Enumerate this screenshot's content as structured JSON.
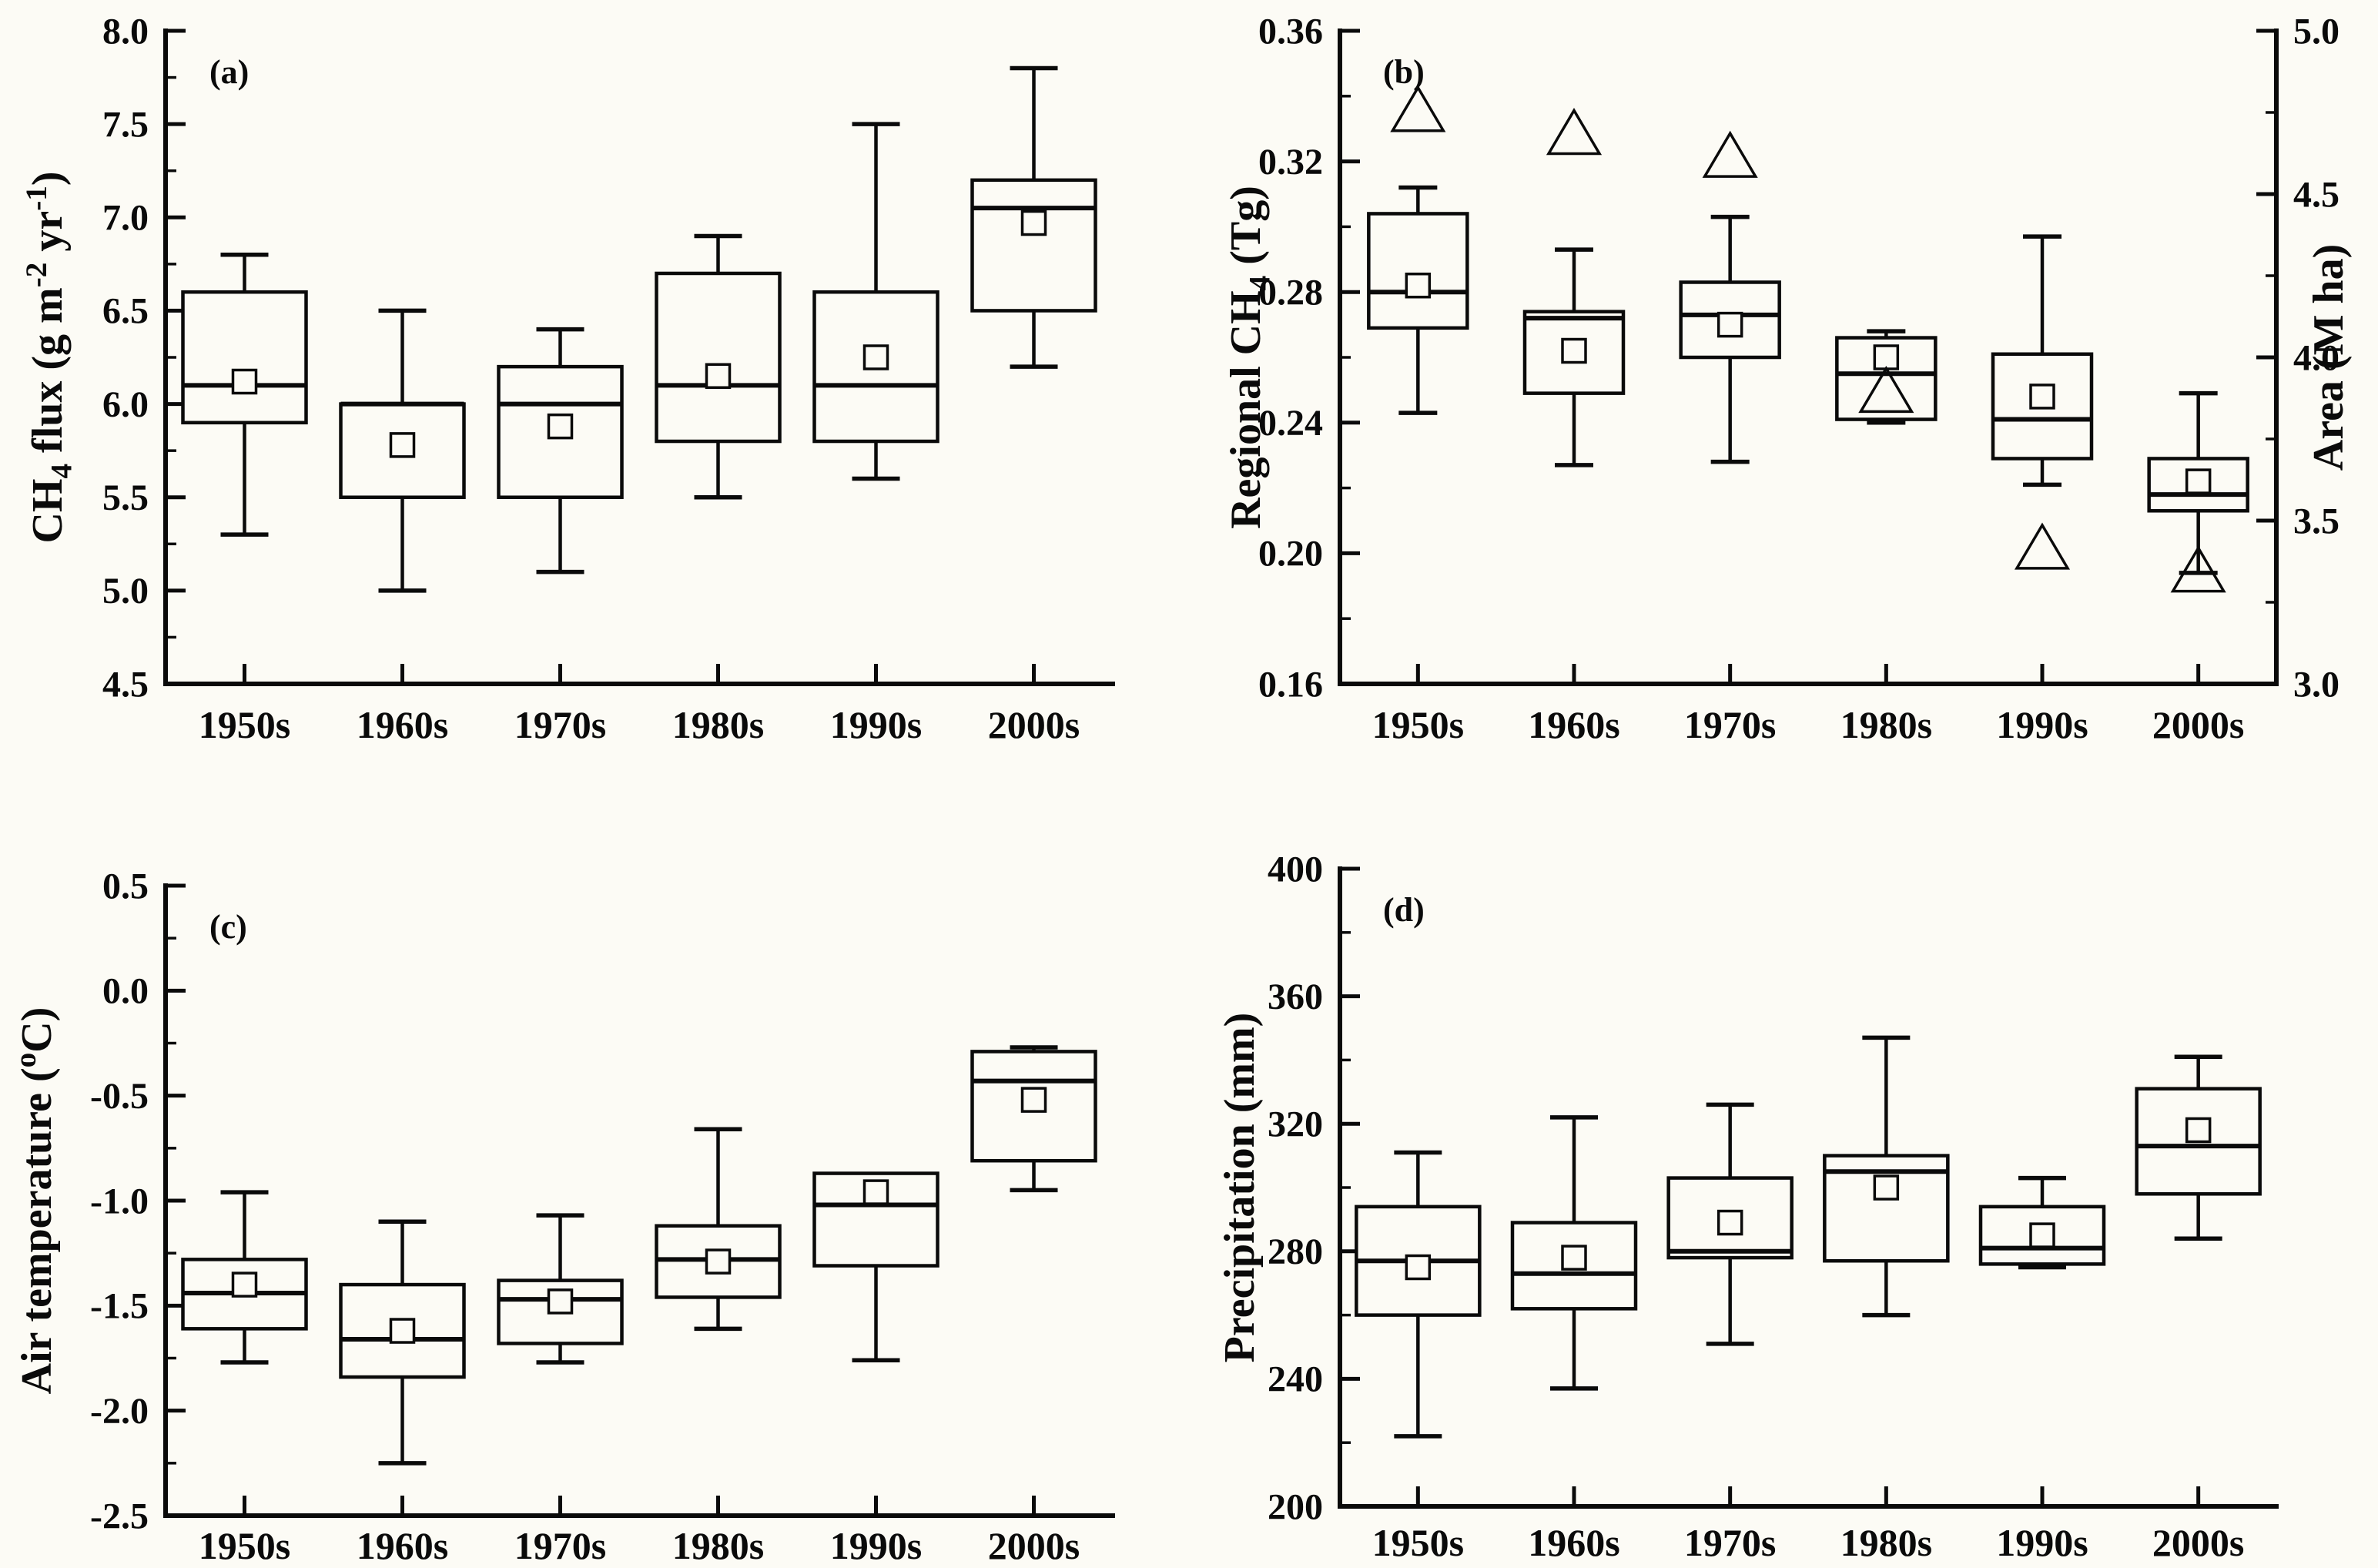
{
  "figure": {
    "background_color": "#fcfbf5",
    "ink_color": "#0a0a0a",
    "mean_marker": "open-square",
    "area_marker": "open-triangle"
  },
  "chart_data": [
    {
      "id": "a",
      "type": "box",
      "panel_label": "(a)",
      "y_axis": {
        "title_segments": [
          {
            "t": "CH"
          },
          {
            "t": "4",
            "pos": "sub"
          },
          {
            "t": " flux (g m"
          },
          {
            "t": "-2",
            "pos": "sup"
          },
          {
            "t": " yr"
          },
          {
            "t": "-1",
            "pos": "sup"
          },
          {
            "t": ")"
          }
        ],
        "lim": [
          4.5,
          8.0
        ],
        "major_ticks": [
          4.5,
          5.0,
          5.5,
          6.0,
          6.5,
          7.0,
          7.5,
          8.0
        ],
        "major_labels": [
          "4.5",
          "5.0",
          "5.5",
          "6.0",
          "6.5",
          "7.0",
          "7.5",
          "8.0"
        ],
        "minor_ticks": [
          4.75,
          5.25,
          5.75,
          6.25,
          6.75,
          7.25,
          7.75
        ]
      },
      "x_axis": {
        "categories": [
          "1950s",
          "1960s",
          "1970s",
          "1980s",
          "1990s",
          "2000s"
        ]
      },
      "boxes": [
        {
          "category": "1950s",
          "lower_whisker": 5.3,
          "q1": 5.9,
          "median": 6.1,
          "q3": 6.6,
          "upper_whisker": 6.8,
          "mean": 6.12
        },
        {
          "category": "1960s",
          "lower_whisker": 5.0,
          "q1": 5.5,
          "median": 6.0,
          "q3": 6.0,
          "upper_whisker": 6.5,
          "mean": 5.78
        },
        {
          "category": "1970s",
          "lower_whisker": 5.1,
          "q1": 5.5,
          "median": 6.0,
          "q3": 6.2,
          "upper_whisker": 6.4,
          "mean": 5.88
        },
        {
          "category": "1980s",
          "lower_whisker": 5.5,
          "q1": 5.8,
          "median": 6.1,
          "q3": 6.7,
          "upper_whisker": 6.9,
          "mean": 6.15
        },
        {
          "category": "1990s",
          "lower_whisker": 5.6,
          "q1": 5.8,
          "median": 6.1,
          "q3": 6.6,
          "upper_whisker": 7.5,
          "mean": 6.25
        },
        {
          "category": "2000s",
          "lower_whisker": 6.2,
          "q1": 6.5,
          "median": 7.05,
          "q3": 7.2,
          "upper_whisker": 7.8,
          "mean": 6.97
        }
      ]
    },
    {
      "id": "b",
      "type": "box",
      "panel_label": "(b)",
      "y_axis": {
        "title_segments": [
          {
            "t": "Regional CH"
          },
          {
            "t": "4",
            "pos": "sub"
          },
          {
            "t": " (Tg)"
          }
        ],
        "lim": [
          0.16,
          0.36
        ],
        "major_ticks": [
          0.16,
          0.2,
          0.24,
          0.28,
          0.32,
          0.36
        ],
        "major_labels": [
          "0.16",
          "0.20",
          "0.24",
          "0.28",
          "0.32",
          "0.36"
        ],
        "minor_ticks": [
          0.18,
          0.22,
          0.26,
          0.3,
          0.34
        ]
      },
      "y2_axis": {
        "title_segments": [
          {
            "t": "Area (M ha)"
          }
        ],
        "lim": [
          3.0,
          5.0
        ],
        "major_ticks": [
          3.0,
          3.5,
          4.0,
          4.5,
          5.0
        ],
        "major_labels": [
          "3.0",
          "3.5",
          "4.0",
          "4.5",
          "5.0"
        ],
        "minor_ticks": [
          3.25,
          3.75,
          4.25,
          4.75
        ]
      },
      "x_axis": {
        "categories": [
          "1950s",
          "1960s",
          "1970s",
          "1980s",
          "1990s",
          "2000s"
        ]
      },
      "boxes": [
        {
          "category": "1950s",
          "lower_whisker": 0.243,
          "q1": 0.269,
          "median": 0.28,
          "q3": 0.304,
          "upper_whisker": 0.312,
          "mean": 0.282
        },
        {
          "category": "1960s",
          "lower_whisker": 0.227,
          "q1": 0.249,
          "median": 0.272,
          "q3": 0.274,
          "upper_whisker": 0.293,
          "mean": 0.262
        },
        {
          "category": "1970s",
          "lower_whisker": 0.228,
          "q1": 0.26,
          "median": 0.273,
          "q3": 0.283,
          "upper_whisker": 0.303,
          "mean": 0.27
        },
        {
          "category": "1980s",
          "lower_whisker": 0.24,
          "q1": 0.241,
          "median": 0.255,
          "q3": 0.266,
          "upper_whisker": 0.268,
          "mean": 0.26
        },
        {
          "category": "1990s",
          "lower_whisker": 0.221,
          "q1": 0.229,
          "median": 0.241,
          "q3": 0.261,
          "upper_whisker": 0.297,
          "mean": 0.248
        },
        {
          "category": "2000s",
          "lower_whisker": 0.194,
          "q1": 0.213,
          "median": 0.218,
          "q3": 0.229,
          "upper_whisker": 0.249,
          "mean": 0.222
        }
      ],
      "triangle_markers": {
        "axis": "y2",
        "series_name": "Area (M ha)",
        "values": [
          {
            "category": "1950s",
            "value": 4.76
          },
          {
            "category": "1960s",
            "value": 4.69
          },
          {
            "category": "1970s",
            "value": 4.62
          },
          {
            "category": "1980s",
            "value": 3.9
          },
          {
            "category": "1990s",
            "value": 3.42
          },
          {
            "category": "2000s",
            "value": 3.35
          }
        ]
      }
    },
    {
      "id": "c",
      "type": "box",
      "panel_label": "(c)",
      "y_axis": {
        "title_segments": [
          {
            "t": "Air temperature ("
          },
          {
            "t": "o",
            "pos": "sup"
          },
          {
            "t": "C)"
          }
        ],
        "lim": [
          -2.5,
          0.5
        ],
        "major_ticks": [
          -2.5,
          -2.0,
          -1.5,
          -1.0,
          -0.5,
          0.0,
          0.5
        ],
        "major_labels": [
          "-2.5",
          "-2.0",
          "-1.5",
          "-1.0",
          "-0.5",
          "0.0",
          "0.5"
        ],
        "minor_ticks": [
          -2.25,
          -1.75,
          -1.25,
          -0.75,
          -0.25,
          0.25
        ]
      },
      "x_axis": {
        "categories": [
          "1950s",
          "1960s",
          "1970s",
          "1980s",
          "1990s",
          "2000s"
        ]
      },
      "boxes": [
        {
          "category": "1950s",
          "lower_whisker": -1.77,
          "q1": -1.61,
          "median": -1.44,
          "q3": -1.28,
          "upper_whisker": -0.96,
          "mean": -1.4
        },
        {
          "category": "1960s",
          "lower_whisker": -2.25,
          "q1": -1.84,
          "median": -1.66,
          "q3": -1.4,
          "upper_whisker": -1.1,
          "mean": -1.62
        },
        {
          "category": "1970s",
          "lower_whisker": -1.77,
          "q1": -1.68,
          "median": -1.47,
          "q3": -1.38,
          "upper_whisker": -1.07,
          "mean": -1.48
        },
        {
          "category": "1980s",
          "lower_whisker": -1.61,
          "q1": -1.46,
          "median": -1.28,
          "q3": -1.12,
          "upper_whisker": -0.66,
          "mean": -1.29
        },
        {
          "category": "1990s",
          "lower_whisker": -1.76,
          "q1": -1.31,
          "median": -1.02,
          "q3": -0.87,
          "upper_whisker": -0.87,
          "mean": -0.96
        },
        {
          "category": "2000s",
          "lower_whisker": -0.95,
          "q1": -0.81,
          "median": -0.43,
          "q3": -0.29,
          "upper_whisker": -0.27,
          "mean": -0.52
        }
      ]
    },
    {
      "id": "d",
      "type": "box",
      "panel_label": "(d)",
      "y_axis": {
        "title_segments": [
          {
            "t": "Precipitation (mm)"
          }
        ],
        "lim": [
          200,
          400
        ],
        "major_ticks": [
          200,
          240,
          280,
          320,
          360,
          400
        ],
        "major_labels": [
          "200",
          "240",
          "280",
          "320",
          "360",
          "400"
        ],
        "minor_ticks": [
          220,
          260,
          300,
          340,
          380
        ]
      },
      "x_axis": {
        "categories": [
          "1950s",
          "1960s",
          "1970s",
          "1980s",
          "1990s",
          "2000s"
        ]
      },
      "boxes": [
        {
          "category": "1950s",
          "lower_whisker": 222,
          "q1": 260,
          "median": 277,
          "q3": 294,
          "upper_whisker": 311,
          "mean": 275
        },
        {
          "category": "1960s",
          "lower_whisker": 237,
          "q1": 262,
          "median": 273,
          "q3": 289,
          "upper_whisker": 322,
          "mean": 278
        },
        {
          "category": "1970s",
          "lower_whisker": 251,
          "q1": 278,
          "median": 280,
          "q3": 303,
          "upper_whisker": 326,
          "mean": 289
        },
        {
          "category": "1980s",
          "lower_whisker": 260,
          "q1": 277,
          "median": 305,
          "q3": 310,
          "upper_whisker": 347,
          "mean": 300
        },
        {
          "category": "1990s",
          "lower_whisker": 275,
          "q1": 276,
          "median": 281,
          "q3": 294,
          "upper_whisker": 303,
          "mean": 285
        },
        {
          "category": "2000s",
          "lower_whisker": 284,
          "q1": 298,
          "median": 313,
          "q3": 331,
          "upper_whisker": 341,
          "mean": 318
        }
      ]
    }
  ]
}
